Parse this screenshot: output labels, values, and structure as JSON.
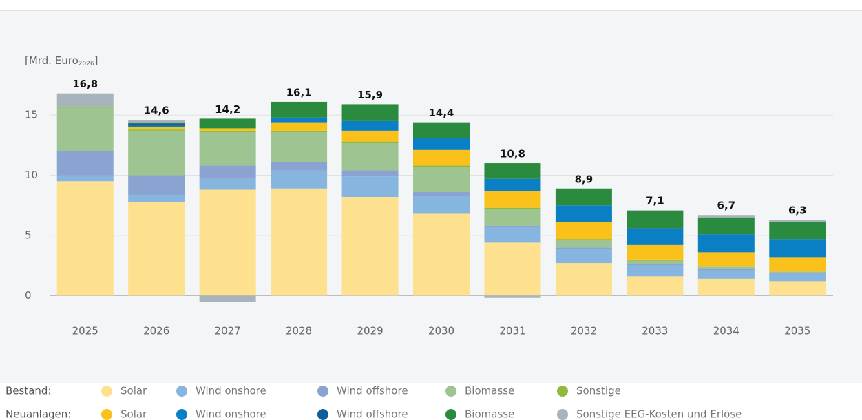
{
  "chart_data": {
    "type": "stacked_bar",
    "ylabel": [
      "[Mrd. Euro",
      "2026",
      "]"
    ],
    "categories": [
      "2025",
      "2026",
      "2027",
      "2028",
      "2029",
      "2030",
      "2031",
      "2032",
      "2033",
      "2034",
      "2035"
    ],
    "ylim": [
      -1.3,
      18.5
    ],
    "yticks": [
      0,
      5,
      10,
      15
    ],
    "grid": true,
    "total_labels": [
      "16,8",
      "14,6",
      "14,2",
      "16,1",
      "15,9",
      "14,4",
      "10,8",
      "8,9",
      "7,1",
      "6,7",
      "6,3"
    ],
    "legend_groups": [
      "Bestand:",
      "Neuanlagen:"
    ],
    "series": [
      {
        "group": 0,
        "name": "Solar",
        "color": "#fde18f",
        "values": [
          9.5,
          7.8,
          8.8,
          8.9,
          8.2,
          6.8,
          4.4,
          2.7,
          1.6,
          1.4,
          1.2
        ]
      },
      {
        "group": 0,
        "name": "Wind onshore",
        "color": "#86b5e0",
        "values": [
          0.5,
          0.6,
          0.9,
          1.5,
          1.7,
          1.5,
          1.3,
          1.2,
          0.9,
          0.7,
          0.6
        ]
      },
      {
        "group": 0,
        "name": "Wind offshore",
        "color": "#8aa3d1",
        "values": [
          2.0,
          1.6,
          1.1,
          0.7,
          0.5,
          0.3,
          0.1,
          0.1,
          0.1,
          0.1,
          0.1
        ]
      },
      {
        "group": 0,
        "name": "Biomasse",
        "color": "#9dc491",
        "values": [
          3.6,
          3.7,
          2.8,
          2.5,
          2.3,
          2.1,
          1.4,
          0.6,
          0.3,
          0.2,
          0.1
        ]
      },
      {
        "group": 0,
        "name": "Sonstige",
        "color": "#8fba3a",
        "values": [
          0.1,
          0.1,
          0.1,
          0.1,
          0.1,
          0.1,
          0.1,
          0.1,
          0.1,
          0.0,
          0.0
        ]
      },
      {
        "group": 1,
        "name": "Solar",
        "color": "#f9c11a",
        "values": [
          0,
          0.2,
          0.2,
          0.7,
          0.9,
          1.3,
          1.4,
          1.4,
          1.2,
          1.2,
          1.2
        ]
      },
      {
        "group": 1,
        "name": "Wind onshore",
        "color": "#0a7fc4",
        "values": [
          0,
          0.1,
          0,
          0.4,
          0.8,
          1.0,
          1.0,
          1.4,
          1.4,
          1.5,
          1.5
        ]
      },
      {
        "group": 1,
        "name": "Wind offshore",
        "color": "#0d5f9a",
        "values": [
          0,
          0.2,
          0,
          0,
          0,
          0,
          0,
          0,
          0,
          0,
          0
        ]
      },
      {
        "group": 1,
        "name": "Biomasse",
        "color": "#2a8a3e",
        "values": [
          0,
          0.1,
          0.8,
          1.3,
          1.4,
          1.3,
          1.3,
          1.4,
          1.4,
          1.4,
          1.4
        ]
      },
      {
        "group": 1,
        "name": "Sonstige EEG-Kosten und Erlöse",
        "color": "#a8b4bb",
        "values": [
          1.1,
          0.2,
          -0.5,
          0,
          0,
          0,
          -0.2,
          0,
          0.1,
          0.2,
          0.2
        ]
      }
    ]
  }
}
